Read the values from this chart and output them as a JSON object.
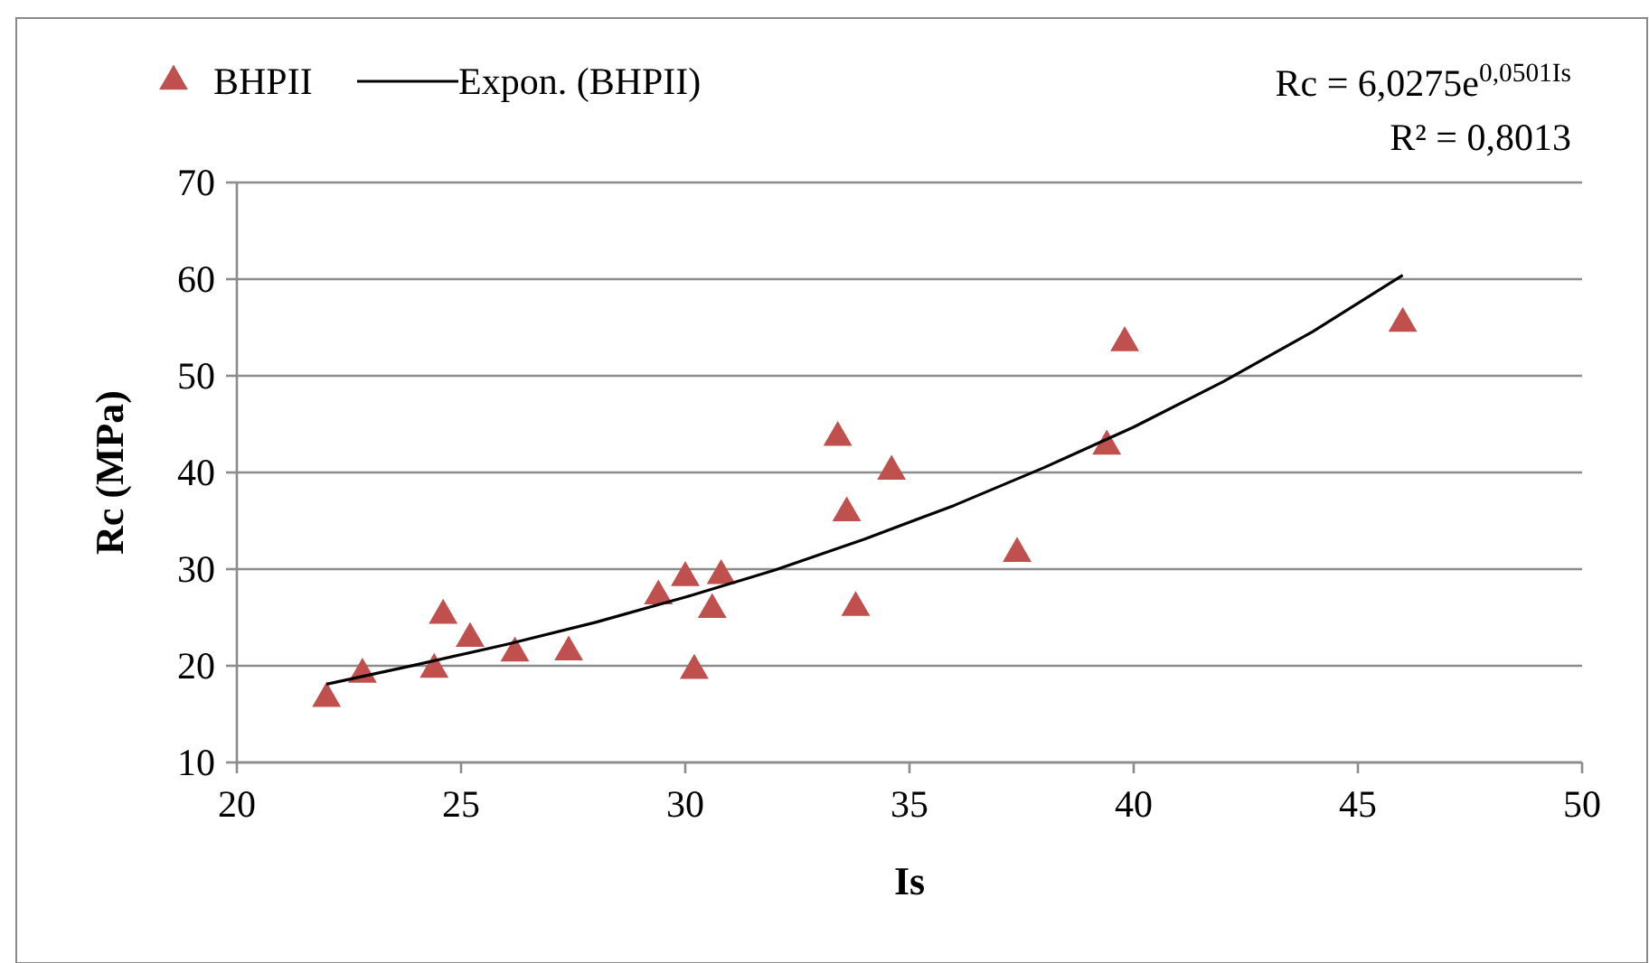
{
  "chart_data": {
    "type": "scatter",
    "xlabel": "Is",
    "ylabel": "Rc (MPa)",
    "xlim": [
      20,
      50
    ],
    "xticks": [
      20,
      25,
      30,
      35,
      40,
      45,
      50
    ],
    "ylim": [
      10,
      70
    ],
    "yticks": [
      10,
      20,
      30,
      40,
      50,
      60,
      70
    ],
    "grid": "y",
    "legend": "top left",
    "marker": "triangle",
    "annotations": [
      "Rc = 6,0275e$^{0,0501Is}$",
      "R² = 0,8013"
    ],
    "series": [
      {
        "name": "BHPII",
        "color": "#c0504d",
        "x": [
          22.0,
          22.8,
          24.4,
          24.6,
          25.2,
          26.2,
          27.4,
          29.4,
          30.0,
          30.2,
          30.6,
          30.8,
          33.4,
          33.6,
          33.8,
          34.6,
          37.4,
          39.4,
          39.8,
          46.0
        ],
        "values": [
          16.8,
          19.3,
          19.8,
          25.4,
          23.0,
          21.5,
          21.6,
          27.4,
          29.3,
          19.7,
          26.0,
          29.5,
          43.8,
          36.0,
          26.2,
          40.3,
          31.8,
          42.9,
          53.6,
          55.6
        ]
      },
      {
        "name": "Expon. (BHPII)",
        "type": "line",
        "color": "#000000",
        "marker": "none",
        "line_style": "solid",
        "x": [
          22,
          24,
          26,
          28,
          30,
          32,
          34,
          36,
          38,
          40,
          42,
          44,
          46
        ],
        "values": [
          18.1,
          20.1,
          22.2,
          24.5,
          27.1,
          29.9,
          33.1,
          36.6,
          40.5,
          44.7,
          49.4,
          54.6,
          60.4
        ]
      }
    ]
  }
}
